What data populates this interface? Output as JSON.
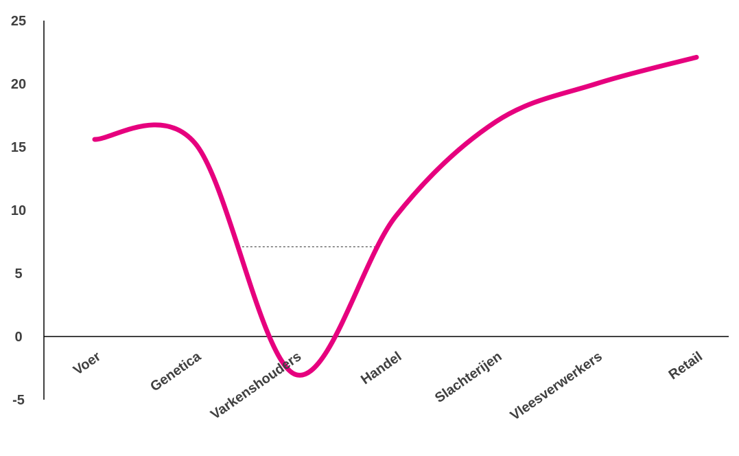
{
  "chart_data": {
    "type": "line",
    "smooth": true,
    "title": "",
    "xlabel": "",
    "ylabel": "",
    "categories": [
      "Voer",
      "Genetica",
      "Varkenshouders",
      "Handel",
      "Slachterijen",
      "Vleesverwerkers",
      "Retail"
    ],
    "series": [
      {
        "values": [
          15.6,
          15.3,
          -3.0,
          9.5,
          17.0,
          20.0,
          22.1
        ]
      }
    ],
    "ylim": [
      -5,
      25
    ],
    "yticks": [
      25,
      20,
      15,
      10,
      5,
      0,
      -5
    ],
    "y_tick_labels": [
      "25",
      "20",
      "15",
      "10",
      "5",
      "0",
      "-5"
    ],
    "reference_line": {
      "y": 7.1,
      "style": "dashed"
    },
    "grid": false,
    "legend": "none",
    "colors": {
      "line": "#e6007e",
      "axis": "#000000",
      "text": "#404040",
      "reference": "#555555"
    }
  }
}
